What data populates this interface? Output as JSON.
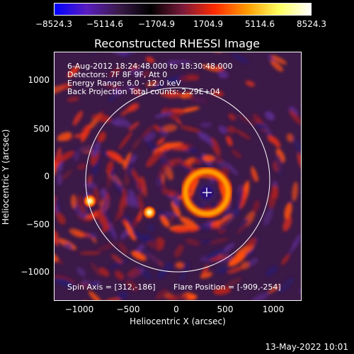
{
  "colorbar": {
    "ticks": [
      "−8524.3",
      "−5114.6",
      "−1704.9",
      "1704.9",
      "5114.6",
      "8524.3"
    ],
    "colors": [
      "#0000ff",
      "#5a1dc0",
      "#3a1a4a",
      "#000000",
      "#7a1a3a",
      "#ff2a00",
      "#ff9a00",
      "#ffff60",
      "#ffffff"
    ]
  },
  "plot": {
    "title": "Reconstructed RHESSI Image",
    "xlabel": "Heliocentric X (arcsec)",
    "ylabel": "Heliocentric Y (arcsec)",
    "xticks": [
      "−1000",
      "−500",
      "0",
      "500",
      "1000"
    ],
    "yticks": [
      "1000",
      "500",
      "0",
      "−500",
      "−1000"
    ],
    "info_lines": [
      "6-Aug-2012 18:24:48.000 to 18:30:48.000",
      "Detectors: 7F 8F 9F, Att 0",
      "Energy Range: 6.0 - 12.0 keV",
      "Back Projection     Total counts: 2.29E+04"
    ],
    "spin_axis": "Spin Axis = [312,-186]",
    "flare_position": "Flare Position = [-909,-254]"
  },
  "timestamp": "13-May-2022 10:01"
}
